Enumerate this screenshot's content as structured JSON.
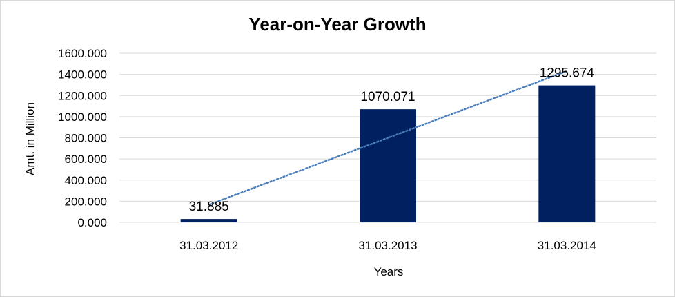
{
  "chart_data": {
    "type": "bar",
    "title": "Year-on-Year Growth",
    "xlabel": "Years",
    "ylabel": "Amt. in Million",
    "categories": [
      "31.03.2012",
      "31.03.2013",
      "31.03.2014"
    ],
    "values": [
      31.885,
      1070.071,
      1295.674
    ],
    "data_labels": [
      "31.885",
      "1070.071",
      "1295.674"
    ],
    "ylim": [
      0,
      1600
    ],
    "y_ticks": [
      "0.000",
      "200.000",
      "400.000",
      "600.000",
      "800.000",
      "1000.000",
      "1200.000",
      "1400.000",
      "1600.000"
    ],
    "y_tick_values": [
      0,
      200,
      400,
      600,
      800,
      1000,
      1200,
      1400,
      1600
    ],
    "grid": true,
    "legend": "none",
    "trendline": {
      "type": "linear",
      "style": "dotted"
    },
    "colors": {
      "bar": "#002060",
      "trendline": "#4a7ebb",
      "grid": "#d9d9d9"
    }
  }
}
